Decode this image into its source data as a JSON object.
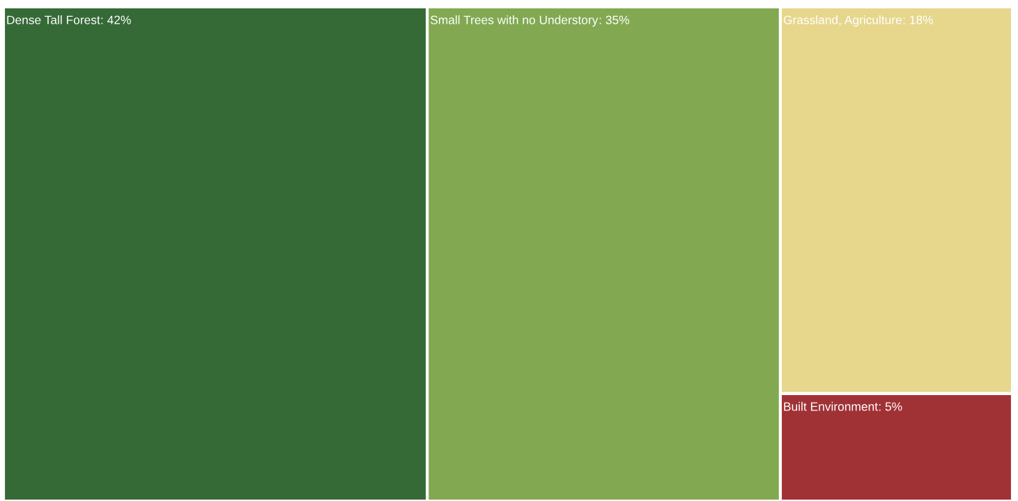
{
  "chart_data": {
    "type": "other",
    "categories": [
      "Dense Tall Forest",
      "Small Trees with no Understory",
      "Grassland, Agriculture",
      "Built Environment"
    ],
    "values": [
      42,
      35,
      18,
      5
    ],
    "value_labels": [
      ": 42%",
      ": 35%",
      ": 18%",
      ": 5%"
    ],
    "colors": [
      "#356a37",
      "#82a952",
      "#e6d78d",
      "#a03235"
    ]
  }
}
